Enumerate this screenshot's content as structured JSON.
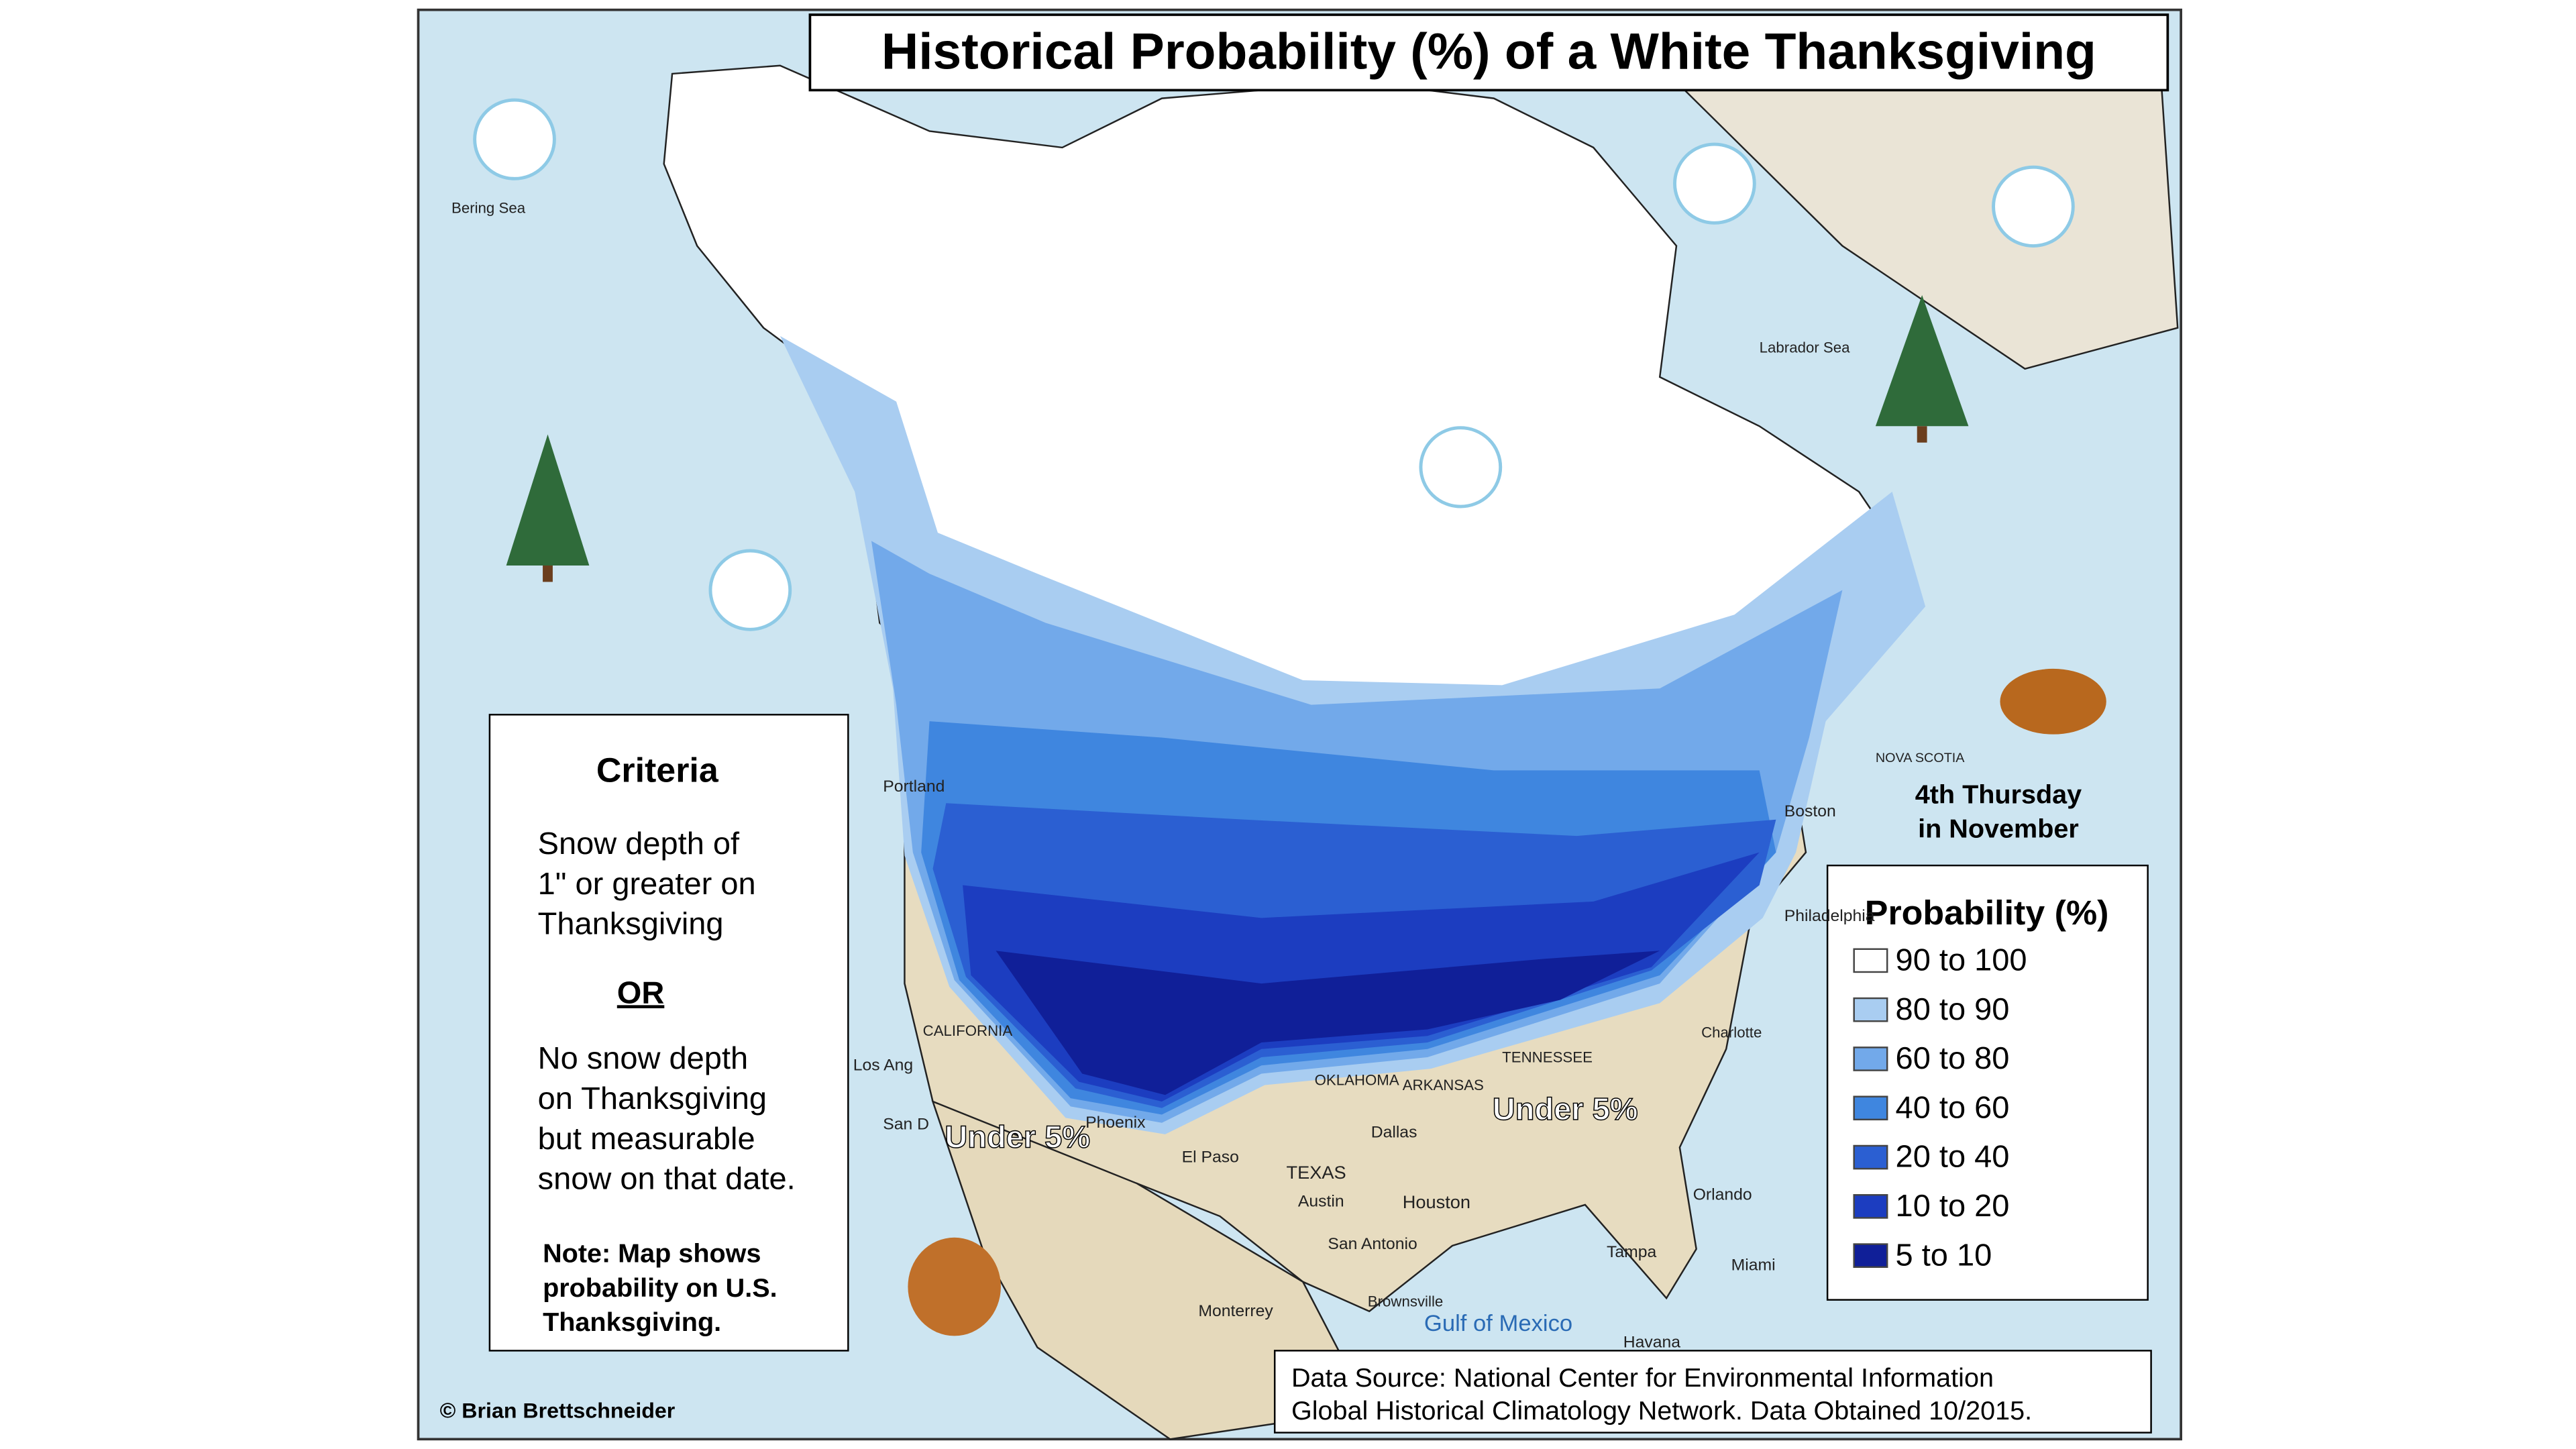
{
  "header": {
    "title": "Historical Probability (%) of a White Thanksgiving"
  },
  "criteria": {
    "title": "Criteria",
    "lines_a": [
      "Snow depth of",
      "1\" or greater on",
      "Thanksgiving"
    ],
    "or": "OR",
    "lines_b": [
      "No snow depth",
      "on Thanksgiving",
      "but measurable",
      "snow on that date."
    ],
    "note": [
      "Note: Map shows",
      "probability on U.S.",
      "Thanksgiving."
    ]
  },
  "legend": {
    "title": "Probability (%)",
    "items": [
      {
        "label": "90 to 100",
        "color": "#ffffff"
      },
      {
        "label": "80 to 90",
        "color": "#a9cdf1"
      },
      {
        "label": "60 to 80",
        "color": "#72a9ea"
      },
      {
        "label": "40 to 60",
        "color": "#3f86df"
      },
      {
        "label": "20 to 40",
        "color": "#2b5fd2"
      },
      {
        "label": "10 to 20",
        "color": "#1c3dc0"
      },
      {
        "label": "5 to 10",
        "color": "#101f98"
      }
    ]
  },
  "holiday": [
    "4th Thursday",
    "in November"
  ],
  "annotations": [
    "Under 5%",
    "Under 5%"
  ],
  "source": [
    "Data Source: National Center for Environmental Information",
    "Global Historical Climatology Network. Data Obtained 10/2015."
  ],
  "credit": "© Brian Brettschneider",
  "places": [
    "Bering Sea",
    "Labrador Sea",
    "Gulf of Mexico",
    "Portland",
    "Los Ang",
    "San D",
    "Phoenix",
    "El Paso",
    "Dallas",
    "Austin",
    "Houston",
    "San Antonio",
    "TEXAS",
    "OKLAHOMA",
    "ARKANSAS",
    "TENNESSEE",
    "Charlotte",
    "Orlando",
    "Tampa",
    "Miami",
    "Philadelphia",
    "Boston",
    "NOVA SCOTIA",
    "Monterrey",
    "Havana",
    "Brownsville",
    "CALIFORNIA"
  ]
}
